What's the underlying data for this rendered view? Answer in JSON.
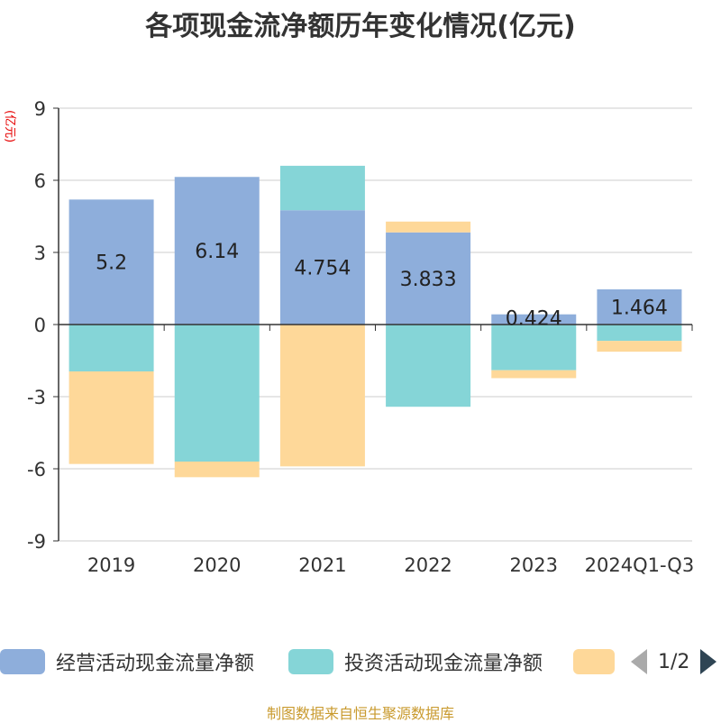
{
  "title": "各项现金流净额历年变化情况(亿元)",
  "ylabel": "(亿元)",
  "colors": {
    "operating": "#8eaedb",
    "investing": "#85d5d7",
    "financing": "#fed899",
    "axis": "#333333",
    "grid": "#cccccc",
    "ylabel": "#e60000",
    "footer": "#c99a2e"
  },
  "chart_data": {
    "type": "bar",
    "stacked": true,
    "categories": [
      "2019",
      "2020",
      "2021",
      "2022",
      "2023",
      "2024Q1-Q3"
    ],
    "ylim": [
      -9,
      9
    ],
    "yticks": [
      "9",
      "6",
      "3",
      "0",
      "-3",
      "-6",
      "-9"
    ],
    "grid": true,
    "legend_position": "bottom",
    "series": [
      {
        "name": "经营活动现金流量净额",
        "values": [
          5.2,
          6.14,
          4.754,
          3.833,
          0.424,
          1.464
        ],
        "data_labels": [
          "5.2",
          "6.14",
          "4.754",
          "3.833",
          "0.424",
          "1.464"
        ]
      },
      {
        "name": "投资活动现金流量净额",
        "values": [
          -1.95,
          -5.7,
          1.85,
          -3.42,
          -1.9,
          -0.68
        ]
      },
      {
        "name": "",
        "values": [
          -3.85,
          -0.65,
          -5.9,
          0.45,
          -0.33,
          -0.45
        ]
      }
    ]
  },
  "legend": {
    "items": [
      "经营活动现金流量净额",
      "投资活动现金流量净额",
      ""
    ],
    "page": "1/2"
  },
  "footer": "制图数据来自恒生聚源数据库"
}
